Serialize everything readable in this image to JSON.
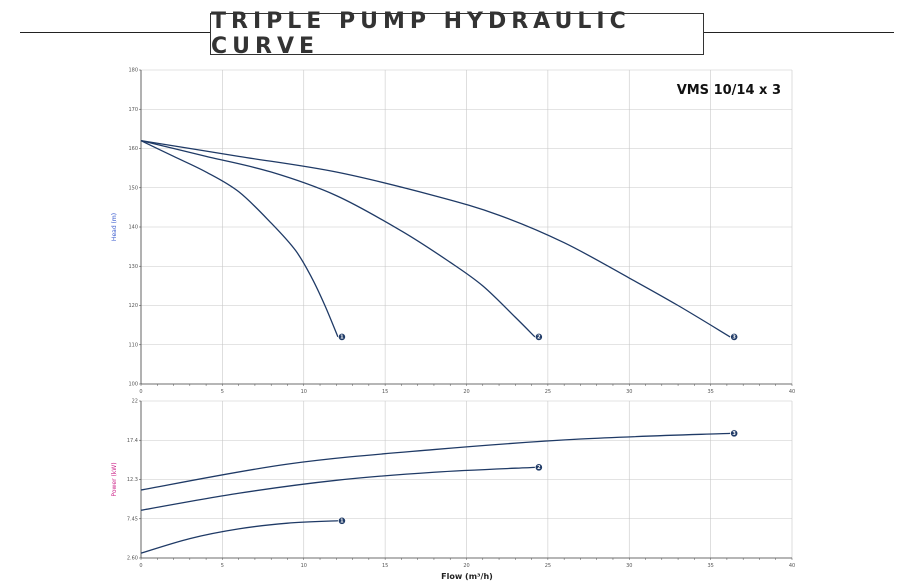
{
  "header": {
    "title": "TRIPLE PUMP HYDRAULIC CURVE"
  },
  "chart_data": [
    {
      "type": "line",
      "model_label": "VMS 10/14 x 3",
      "ylabel": "Head (m)",
      "xlim": [
        0,
        40
      ],
      "ylim": [
        100,
        180
      ],
      "x_ticks": [
        "0",
        "5",
        "10",
        "15",
        "20",
        "25",
        "30",
        "35",
        "40"
      ],
      "y_ticks": [
        "100",
        "110",
        "120",
        "130",
        "140",
        "150",
        "160",
        "170",
        "180"
      ],
      "grid": true,
      "series": [
        {
          "name": "1",
          "x": [
            0,
            2,
            4,
            6,
            8,
            9.5,
            10.5,
            11.3,
            12.1
          ],
          "y": [
            162,
            158,
            154,
            149,
            141,
            134,
            127,
            120,
            112
          ]
        },
        {
          "name": "2",
          "x": [
            0,
            4,
            8,
            12,
            16,
            19,
            21,
            23,
            24.2
          ],
          "y": [
            162,
            158,
            154,
            148,
            139,
            131,
            125,
            117,
            112
          ]
        },
        {
          "name": "3",
          "x": [
            0,
            6,
            12,
            18,
            22,
            26,
            30,
            33,
            36.2
          ],
          "y": [
            162,
            158,
            154,
            148,
            143,
            136,
            127,
            120,
            112
          ]
        }
      ]
    },
    {
      "type": "line",
      "xlabel": "Flow (m³/h)",
      "ylabel": "Power (kW)",
      "xlim": [
        0,
        40
      ],
      "ylim": [
        2.6,
        22
      ],
      "x_ticks": [
        "0",
        "5",
        "10",
        "15",
        "20",
        "25",
        "30",
        "35",
        "40"
      ],
      "y_ticks": [
        "2.60",
        "7.45",
        "12.3",
        "17.4",
        "22"
      ],
      "grid": true,
      "series": [
        {
          "name": "1",
          "x": [
            0,
            3,
            6,
            9,
            12.1
          ],
          "y": [
            3.2,
            5.0,
            6.2,
            6.9,
            7.2
          ]
        },
        {
          "name": "2",
          "x": [
            0,
            6,
            12,
            18,
            24.2
          ],
          "y": [
            8.5,
            10.6,
            12.2,
            13.2,
            13.8
          ]
        },
        {
          "name": "3",
          "x": [
            0,
            9,
            18,
            27,
            36.2
          ],
          "y": [
            11.0,
            14.2,
            16.0,
            17.3,
            18.0
          ]
        }
      ]
    }
  ],
  "colors": {
    "curve": "#1f3a66",
    "grid": "#c8c8c8",
    "head_axis": "#3355cc",
    "power_axis": "#cc2288"
  }
}
